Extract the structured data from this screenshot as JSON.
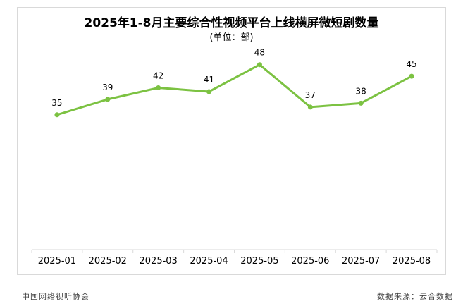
{
  "chart_data": {
    "type": "line",
    "title": "2025年1-8月主要综合性视频平台上线横屏微短剧数量",
    "subtitle": "(单位：部)",
    "categories": [
      "2025-01",
      "2025-02",
      "2025-03",
      "2025-04",
      "2025-05",
      "2025-06",
      "2025-07",
      "2025-08"
    ],
    "series": [
      {
        "values": [
          35,
          39,
          42,
          41,
          48,
          37,
          38,
          45
        ],
        "color": "#7cc242"
      }
    ],
    "ylim": [
      0,
      56
    ],
    "grid": false,
    "legend": "none",
    "data_labels": true
  },
  "footer": {
    "left": "中国网络视听协会",
    "right": "数据来源：云合数据"
  }
}
